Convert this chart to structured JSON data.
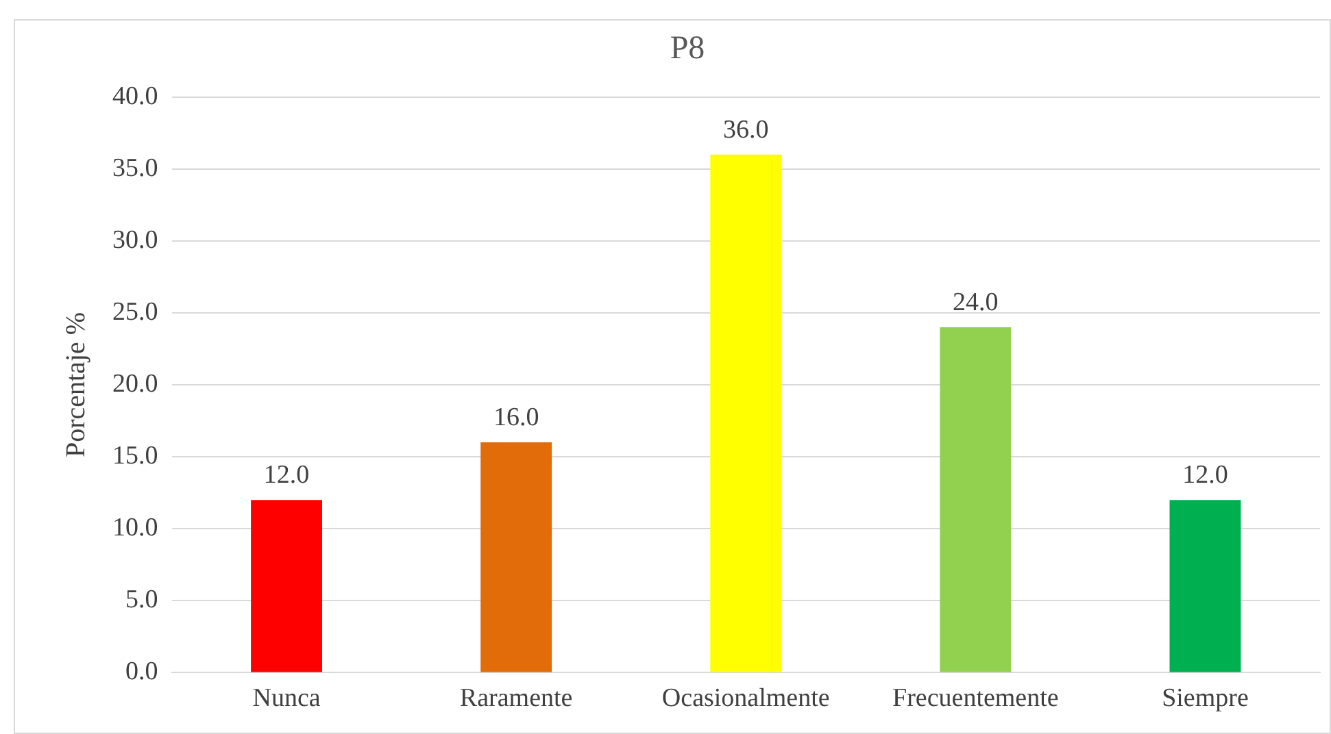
{
  "chart_data": {
    "type": "bar",
    "title": "P8",
    "ylabel": "Porcentaje %",
    "categories": [
      "Nunca",
      "Raramente",
      "Ocasionalmente",
      "Frecuentemente",
      "Siempre"
    ],
    "values": [
      12,
      16,
      36,
      24,
      12
    ],
    "colors": [
      "#ff0000",
      "#e36c0a",
      "#ffff00",
      "#92d050",
      "#00b050"
    ],
    "value_labels": [
      "12.0",
      "16.0",
      "36.0",
      "24.0",
      "12.0"
    ],
    "ylim": [
      0,
      40
    ],
    "yticks": [
      {
        "value": 0,
        "label": "0.0"
      },
      {
        "value": 5,
        "label": "5.0"
      },
      {
        "value": 10,
        "label": "10.0"
      },
      {
        "value": 15,
        "label": "15.0"
      },
      {
        "value": 20,
        "label": "20.0"
      },
      {
        "value": 25,
        "label": "25.0"
      },
      {
        "value": 30,
        "label": "30.0"
      },
      {
        "value": 35,
        "label": "35.0"
      },
      {
        "value": 40,
        "label": "40.0"
      }
    ],
    "grid": "y",
    "legend": false
  }
}
